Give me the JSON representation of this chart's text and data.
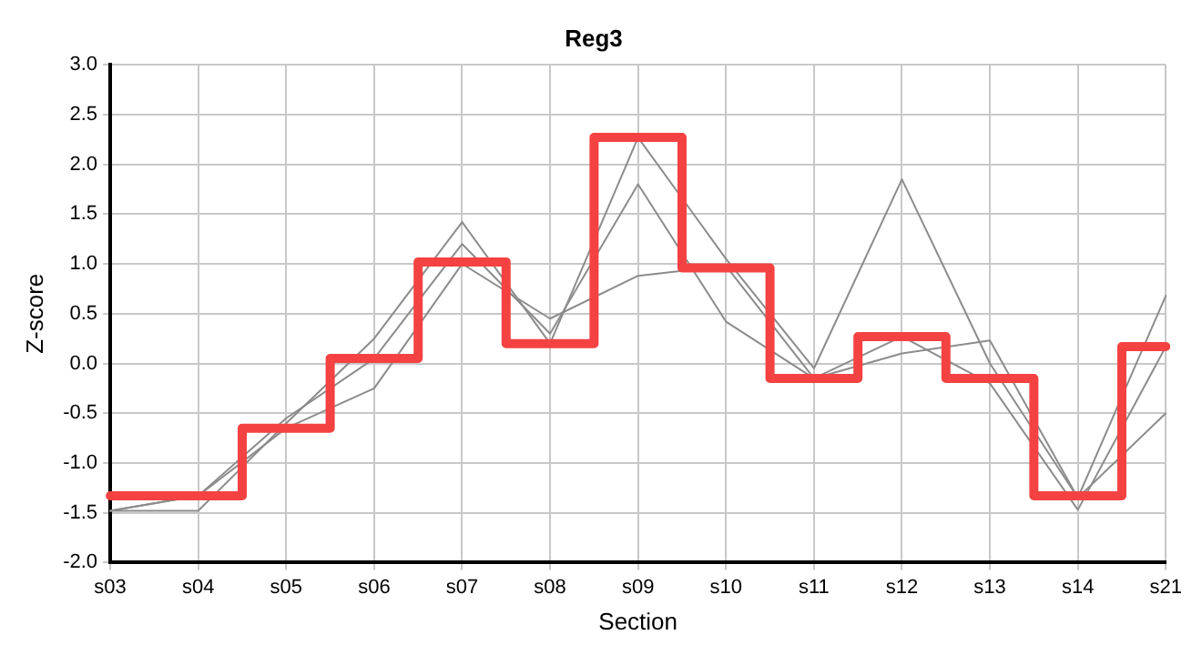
{
  "chart_data": {
    "type": "line",
    "title": "Reg3",
    "xlabel": "Section",
    "ylabel": "Z-score",
    "categories": [
      "s03",
      "s04",
      "s05",
      "s06",
      "s07",
      "s08",
      "s09",
      "s10",
      "s11",
      "s12",
      "s13",
      "s14",
      "s21"
    ],
    "series": [
      {
        "type": "line",
        "color": "#8c8c8c",
        "values": [
          -1.48,
          -1.48,
          -0.6,
          0.25,
          1.42,
          0.2,
          2.27,
          1.05,
          -0.05,
          1.85,
          0.0,
          -1.35,
          0.68
        ]
      },
      {
        "type": "line",
        "color": "#8c8c8c",
        "values": [
          -1.48,
          -1.33,
          -0.55,
          0.05,
          1.2,
          0.3,
          1.8,
          0.42,
          -0.15,
          0.27,
          -0.2,
          -1.47,
          0.17
        ]
      },
      {
        "type": "line",
        "color": "#8c8c8c",
        "values": [
          -1.48,
          -1.33,
          -0.65,
          -0.25,
          1.0,
          0.45,
          0.88,
          0.98,
          -0.15,
          0.1,
          0.23,
          -1.35,
          -0.5
        ]
      },
      {
        "type": "step",
        "color": "#f44242",
        "values": [
          -1.33,
          -1.33,
          -0.65,
          0.05,
          1.02,
          0.2,
          2.27,
          0.96,
          -0.15,
          0.27,
          -0.15,
          -1.33,
          0.17
        ]
      }
    ],
    "ylim": [
      -2,
      3
    ],
    "yticks": [
      {
        "value": -2,
        "label": "-2.0"
      },
      -1.5,
      {
        "value": -1,
        "label": "-1.0"
      },
      -0.5,
      {
        "value": 0,
        "label": "0.0"
      },
      0.5,
      {
        "value": 1,
        "label": "1.0"
      },
      1.5,
      {
        "value": 2,
        "label": "2.0"
      },
      2.5,
      {
        "value": 3,
        "label": "3.0"
      }
    ],
    "grid": true,
    "legend": false,
    "marker": "none"
  }
}
